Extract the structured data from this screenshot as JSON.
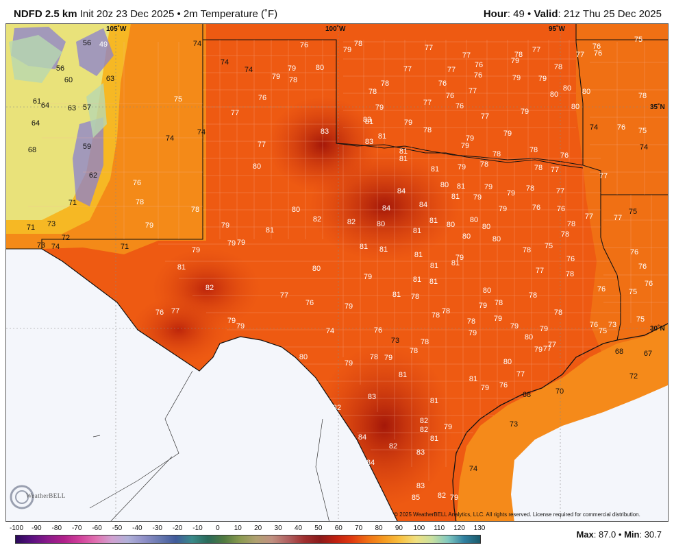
{
  "header": {
    "model": "NDFD 2.5 km",
    "init": "Init 20z 23 Dec 2025",
    "sep": "•",
    "field": "2m Temperature (˚F)",
    "hour_label": "Hour",
    "hour_value": ": 49",
    "valid_label": "Valid",
    "valid_value": ": 21z Thu 25 Dec 2025"
  },
  "map": {
    "lon_labels": [
      "105˚W",
      "100˚W",
      "95˚W"
    ],
    "lat_labels": [
      "35˚N",
      "30˚N"
    ],
    "copyright": "© 2025 WeatherBELL Analytics, LLC. All rights reserved. License required for commercial distribution.",
    "logo_text": "WeatherBELL",
    "values": [
      [
        "56",
        126,
        61,
        1
      ],
      [
        "49",
        150,
        63,
        0
      ],
      [
        "76",
        443,
        64,
        0
      ],
      [
        "79",
        506,
        71,
        0
      ],
      [
        "78",
        522,
        62,
        0
      ],
      [
        "77",
        625,
        68,
        0
      ],
      [
        "77",
        680,
        79,
        0
      ],
      [
        "78",
        756,
        78,
        0
      ],
      [
        "77",
        782,
        71,
        0
      ],
      [
        "77",
        846,
        78,
        0
      ],
      [
        "76",
        870,
        66,
        0
      ],
      [
        "75",
        931,
        56,
        0
      ],
      [
        "74",
        287,
        62,
        1
      ],
      [
        "74",
        327,
        89,
        1
      ],
      [
        "74",
        362,
        100,
        1
      ],
      [
        "79",
        402,
        110,
        0
      ],
      [
        "79",
        425,
        98,
        0
      ],
      [
        "80",
        466,
        97,
        0
      ],
      [
        "78",
        427,
        115,
        0
      ],
      [
        "76",
        382,
        141,
        0
      ],
      [
        "56",
        87,
        98,
        1
      ],
      [
        "60",
        99,
        115,
        1
      ],
      [
        "63",
        160,
        113,
        1
      ],
      [
        "61",
        53,
        146,
        1
      ],
      [
        "64",
        65,
        152,
        1
      ],
      [
        "63",
        104,
        156,
        1
      ],
      [
        "57",
        126,
        155,
        1
      ],
      [
        "75",
        259,
        143,
        0
      ],
      [
        "77",
        594,
        99,
        0
      ],
      [
        "77",
        658,
        100,
        0
      ],
      [
        "76",
        698,
        93,
        0
      ],
      [
        "76",
        697,
        108,
        0
      ],
      [
        "79",
        751,
        87,
        0
      ],
      [
        "78",
        814,
        96,
        0
      ],
      [
        "79",
        753,
        112,
        0
      ],
      [
        "79",
        791,
        113,
        0
      ],
      [
        "80",
        827,
        127,
        0
      ],
      [
        "80",
        855,
        132,
        0
      ],
      [
        "76",
        872,
        76,
        0
      ],
      [
        "78",
        937,
        138,
        0
      ],
      [
        "77",
        342,
        163,
        0
      ],
      [
        "78",
        543,
        132,
        0
      ],
      [
        "78",
        561,
        120,
        0
      ],
      [
        "76",
        645,
        120,
        0
      ],
      [
        "77",
        689,
        131,
        0
      ],
      [
        "76",
        656,
        138,
        0
      ],
      [
        "76",
        670,
        153,
        0
      ],
      [
        "80",
        808,
        136,
        0
      ],
      [
        "80",
        839,
        154,
        0
      ],
      [
        "79",
        553,
        155,
        0
      ],
      [
        "77",
        623,
        148,
        0
      ],
      [
        "79",
        765,
        161,
        0
      ],
      [
        "77",
        707,
        168,
        0
      ],
      [
        "83",
        473,
        190,
        0
      ],
      [
        "83",
        535,
        173,
        0
      ],
      [
        "81",
        538,
        176,
        0
      ],
      [
        "79",
        595,
        177,
        0
      ],
      [
        "78",
        623,
        188,
        0
      ],
      [
        "81",
        557,
        197,
        0
      ],
      [
        "79",
        685,
        200,
        0
      ],
      [
        "79",
        678,
        211,
        0
      ],
      [
        "79",
        740,
        193,
        0
      ],
      [
        "64",
        51,
        178,
        1
      ],
      [
        "74",
        247,
        200,
        1
      ],
      [
        "74",
        293,
        191,
        1
      ],
      [
        "74",
        866,
        184,
        1
      ],
      [
        "76",
        906,
        184,
        0
      ],
      [
        "75",
        937,
        189,
        0
      ],
      [
        "74",
        939,
        213,
        1
      ],
      [
        "68",
        46,
        217,
        1
      ],
      [
        "59",
        126,
        212,
        1
      ],
      [
        "77",
        381,
        209,
        0
      ],
      [
        "83",
        538,
        205,
        0
      ],
      [
        "81",
        588,
        219,
        0
      ],
      [
        "81",
        588,
        230,
        0
      ],
      [
        "78",
        724,
        223,
        0
      ],
      [
        "78",
        778,
        217,
        0
      ],
      [
        "76",
        823,
        225,
        0
      ],
      [
        "80",
        374,
        241,
        0
      ],
      [
        "81",
        634,
        245,
        0
      ],
      [
        "79",
        673,
        242,
        0
      ],
      [
        "78",
        706,
        238,
        0
      ],
      [
        "78",
        785,
        243,
        0
      ],
      [
        "77",
        809,
        246,
        0
      ],
      [
        "77",
        880,
        255,
        0
      ],
      [
        "62",
        135,
        254,
        1
      ],
      [
        "76",
        199,
        265,
        0
      ],
      [
        "80",
        648,
        268,
        0
      ],
      [
        "81",
        672,
        270,
        0
      ],
      [
        "79",
        712,
        271,
        0
      ],
      [
        "79",
        745,
        280,
        0
      ],
      [
        "78",
        773,
        273,
        0
      ],
      [
        "77",
        817,
        277,
        0
      ],
      [
        "84",
        585,
        277,
        0
      ],
      [
        "81",
        664,
        285,
        0
      ],
      [
        "79",
        696,
        286,
        0
      ],
      [
        "71",
        105,
        294,
        1
      ],
      [
        "78",
        203,
        293,
        0
      ],
      [
        "78",
        284,
        304,
        0
      ],
      [
        "80",
        431,
        304,
        0
      ],
      [
        "84",
        563,
        302,
        0
      ],
      [
        "84",
        617,
        297,
        0
      ],
      [
        "79",
        733,
        303,
        0
      ],
      [
        "76",
        782,
        301,
        0
      ],
      [
        "76",
        818,
        303,
        0
      ],
      [
        "77",
        859,
        314,
        0
      ],
      [
        "75",
        923,
        307,
        1
      ],
      [
        "77",
        901,
        316,
        0
      ],
      [
        "71",
        44,
        330,
        1
      ],
      [
        "73",
        74,
        325,
        1
      ],
      [
        "79",
        217,
        327,
        0
      ],
      [
        "79",
        328,
        327,
        0
      ],
      [
        "81",
        393,
        334,
        0
      ],
      [
        "82",
        462,
        318,
        0
      ],
      [
        "82",
        512,
        322,
        0
      ],
      [
        "80",
        555,
        325,
        0
      ],
      [
        "81",
        608,
        335,
        0
      ],
      [
        "81",
        632,
        320,
        0
      ],
      [
        "80",
        657,
        326,
        0
      ],
      [
        "80",
        691,
        319,
        0
      ],
      [
        "80",
        709,
        329,
        0
      ],
      [
        "78",
        833,
        325,
        0
      ],
      [
        "78",
        824,
        340,
        0
      ],
      [
        "72",
        95,
        345,
        1
      ],
      [
        "73",
        59,
        356,
        1
      ],
      [
        "74",
        80,
        358,
        1
      ],
      [
        "71",
        181,
        358,
        1
      ],
      [
        "79",
        285,
        363,
        0
      ],
      [
        "79",
        337,
        353,
        0
      ],
      [
        "79",
        351,
        352,
        0
      ],
      [
        "80",
        680,
        343,
        0
      ],
      [
        "80",
        724,
        347,
        0
      ],
      [
        "75",
        800,
        357,
        0
      ],
      [
        "78",
        768,
        363,
        0
      ],
      [
        "76",
        832,
        376,
        0
      ],
      [
        "76",
        925,
        366,
        0
      ],
      [
        "81",
        530,
        358,
        0
      ],
      [
        "81",
        559,
        362,
        0
      ],
      [
        "81",
        610,
        370,
        0
      ],
      [
        "79",
        670,
        374,
        0
      ],
      [
        "81",
        664,
        382,
        0
      ],
      [
        "81",
        633,
        386,
        0
      ],
      [
        "81",
        264,
        388,
        0
      ],
      [
        "80",
        461,
        390,
        0
      ],
      [
        "79",
        536,
        402,
        0
      ],
      [
        "81",
        608,
        406,
        0
      ],
      [
        "81",
        632,
        409,
        0
      ],
      [
        "77",
        787,
        393,
        0
      ],
      [
        "78",
        831,
        398,
        0
      ],
      [
        "76",
        937,
        387,
        0
      ],
      [
        "82",
        305,
        418,
        0
      ],
      [
        "77",
        414,
        429,
        0
      ],
      [
        "76",
        451,
        440,
        0
      ],
      [
        "79",
        508,
        445,
        0
      ],
      [
        "81",
        578,
        428,
        0
      ],
      [
        "78",
        605,
        431,
        0
      ],
      [
        "80",
        710,
        422,
        0
      ],
      [
        "79",
        704,
        444,
        0
      ],
      [
        "78",
        727,
        440,
        0
      ],
      [
        "78",
        777,
        429,
        0
      ],
      [
        "76",
        877,
        420,
        0
      ],
      [
        "75",
        923,
        424,
        0
      ],
      [
        "76",
        946,
        412,
        0
      ],
      [
        "76",
        232,
        454,
        0
      ],
      [
        "77",
        255,
        452,
        0
      ],
      [
        "79",
        337,
        466,
        0
      ],
      [
        "79",
        350,
        474,
        0
      ],
      [
        "78",
        635,
        458,
        0
      ],
      [
        "78",
        650,
        452,
        0
      ],
      [
        "78",
        687,
        467,
        0
      ],
      [
        "79",
        726,
        463,
        0
      ],
      [
        "79",
        750,
        474,
        0
      ],
      [
        "79",
        793,
        478,
        0
      ],
      [
        "78",
        814,
        454,
        0
      ],
      [
        "76",
        866,
        472,
        0
      ],
      [
        "73",
        893,
        472,
        0
      ],
      [
        "75",
        879,
        481,
        0
      ],
      [
        "75",
        934,
        464,
        0
      ],
      [
        "74",
        481,
        481,
        0
      ],
      [
        "76",
        551,
        480,
        0
      ],
      [
        "73",
        576,
        495,
        1
      ],
      [
        "78",
        619,
        497,
        0
      ],
      [
        "79",
        689,
        484,
        0
      ],
      [
        "80",
        771,
        490,
        0
      ],
      [
        "79",
        785,
        508,
        0
      ],
      [
        "77",
        798,
        507,
        0
      ],
      [
        "77",
        805,
        501,
        0
      ],
      [
        "80",
        442,
        519,
        0
      ],
      [
        "79",
        508,
        528,
        0
      ],
      [
        "78",
        545,
        519,
        0
      ],
      [
        "79",
        566,
        520,
        0
      ],
      [
        "78",
        603,
        510,
        0
      ],
      [
        "80",
        740,
        526,
        0
      ],
      [
        "68",
        903,
        511,
        1
      ],
      [
        "67",
        945,
        514,
        1
      ],
      [
        "81",
        587,
        545,
        0
      ],
      [
        "81",
        690,
        551,
        0
      ],
      [
        "79",
        707,
        564,
        0
      ],
      [
        "76",
        734,
        560,
        0
      ],
      [
        "77",
        759,
        544,
        0
      ],
      [
        "72",
        924,
        547,
        1
      ],
      [
        "83",
        542,
        577,
        0
      ],
      [
        "81",
        633,
        583,
        0
      ],
      [
        "68",
        768,
        574,
        1
      ],
      [
        "70",
        816,
        569,
        1
      ],
      [
        "82",
        491,
        593,
        0
      ],
      [
        "82",
        618,
        612,
        0
      ],
      [
        "82",
        618,
        625,
        0
      ],
      [
        "79",
        653,
        621,
        0
      ],
      [
        "73",
        749,
        617,
        1
      ],
      [
        "84",
        528,
        636,
        0
      ],
      [
        "81",
        633,
        638,
        0
      ],
      [
        "82",
        573,
        649,
        0
      ],
      [
        "83",
        613,
        658,
        0
      ],
      [
        "84",
        540,
        673,
        0
      ],
      [
        "74",
        690,
        682,
        1
      ],
      [
        "83",
        613,
        707,
        0
      ],
      [
        "85",
        606,
        724,
        0
      ],
      [
        "82",
        644,
        721,
        0
      ],
      [
        "79",
        662,
        724,
        0
      ]
    ]
  },
  "scale": {
    "ticks": [
      "-100",
      "-90",
      "-80",
      "-70",
      "-60",
      "-50",
      "-40",
      "-30",
      "-20",
      "-10",
      "0",
      "10",
      "20",
      "30",
      "40",
      "50",
      "60",
      "70",
      "80",
      "90",
      "100",
      "110",
      "120",
      "130"
    ],
    "max_label": "Max",
    "max_value": ": 87.0",
    "sep": "•",
    "min_label": "Min",
    "min_value": ": 30.7"
  }
}
